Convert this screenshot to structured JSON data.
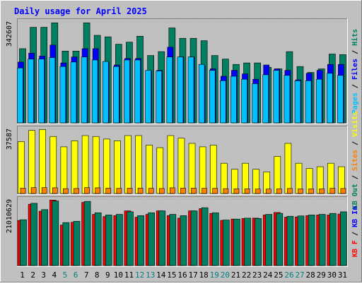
{
  "title": "Daily usage for April 2025",
  "colors": {
    "background": "#C0C0C0",
    "title": "#0000FF",
    "hits": "#008060",
    "files": "#0000FF",
    "pages": "#00C0FF",
    "visits": "#FFFF00",
    "sites": "#FF8000",
    "kb_in": "#008060",
    "kb_out": "#008060",
    "kb_f": "#FF0000",
    "weekend_label": "#008080",
    "weekday_label": "#000000"
  },
  "chart_data": [
    {
      "type": "bar",
      "name": "hits-files-pages",
      "ylabel_max": "342607",
      "ymax": 342607,
      "legend": [
        {
          "text": "Hits",
          "color": "#008060"
        },
        {
          "text": "Files",
          "color": "#0000FF"
        },
        {
          "text": "Pages",
          "color": "#00C0FF"
        }
      ],
      "categories": [
        "1",
        "2",
        "3",
        "4",
        "5",
        "6",
        "7",
        "8",
        "9",
        "10",
        "11",
        "12",
        "13",
        "14",
        "15",
        "16",
        "17",
        "18",
        "19",
        "20",
        "21",
        "22",
        "23",
        "24",
        "25",
        "26",
        "27",
        "28",
        "29",
        "30",
        "31"
      ],
      "weekend_days": [
        5,
        6,
        12,
        13,
        19,
        20,
        26,
        27
      ],
      "series": [
        {
          "name": "Hits",
          "values": [
            250000,
            322000,
            322000,
            337000,
            242000,
            242000,
            337000,
            295000,
            290000,
            265000,
            272000,
            292000,
            227000,
            240000,
            320000,
            285000,
            285000,
            277000,
            227000,
            215000,
            197000,
            202000,
            202000,
            187000,
            182000,
            240000,
            190000,
            170000,
            182000,
            232000,
            230000
          ]
        },
        {
          "name": "Files",
          "values": [
            205000,
            235000,
            225000,
            262000,
            202000,
            222000,
            250000,
            250000,
            205000,
            195000,
            217000,
            217000,
            175000,
            177000,
            255000,
            222000,
            222000,
            192000,
            182000,
            157000,
            177000,
            165000,
            147000,
            195000,
            182000,
            177000,
            145000,
            167000,
            177000,
            197000,
            197000
          ]
        },
        {
          "name": "Pages",
          "values": [
            185000,
            215000,
            215000,
            220000,
            190000,
            205000,
            222000,
            212000,
            207000,
            190000,
            212000,
            212000,
            177000,
            175000,
            222000,
            222000,
            222000,
            197000,
            177000,
            142000,
            157000,
            147000,
            132000,
            162000,
            177000,
            160000,
            142000,
            142000,
            147000,
            167000,
            160000
          ]
        }
      ]
    },
    {
      "type": "bar",
      "name": "visits-sites",
      "ylabel_max": "37587",
      "ymax": 37587,
      "legend": [
        {
          "text": "Visits",
          "color": "#FFFF00"
        },
        {
          "text": "Sites",
          "color": "#FF8000"
        },
        {
          "text": "KB Out",
          "color": "#008060"
        }
      ],
      "categories": [
        "1",
        "2",
        "3",
        "4",
        "5",
        "6",
        "7",
        "8",
        "9",
        "10",
        "11",
        "12",
        "13",
        "14",
        "15",
        "16",
        "17",
        "18",
        "19",
        "20",
        "21",
        "22",
        "23",
        "24",
        "25",
        "26",
        "27",
        "28",
        "29",
        "30",
        "31"
      ],
      "series": [
        {
          "name": "Visits",
          "values": [
            30000,
            36500,
            37000,
            33000,
            27000,
            30500,
            33500,
            33000,
            31500,
            30500,
            33500,
            33500,
            28000,
            26500,
            33500,
            32000,
            29000,
            27000,
            28000,
            17500,
            14000,
            17500,
            14000,
            12500,
            21500,
            29000,
            17500,
            14500,
            15500,
            17500,
            15500
          ]
        },
        {
          "name": "Sites",
          "values": [
            3100,
            3400,
            3400,
            3300,
            2800,
            2900,
            3400,
            3300,
            3100,
            3000,
            3100,
            3100,
            3000,
            2900,
            3300,
            3100,
            3100,
            3000,
            3000,
            2800,
            2700,
            2700,
            2600,
            2600,
            2700,
            2900,
            2700,
            2700,
            2700,
            3000,
            2900
          ]
        }
      ]
    },
    {
      "type": "bar",
      "name": "kb-in-kb-f",
      "ylabel_max": "21010629",
      "ymax": 21010629,
      "legend": [
        {
          "text": "KB In",
          "color": "#0000FF"
        },
        {
          "text": "KB F",
          "color": "#FF0000"
        }
      ],
      "categories": [
        "1",
        "2",
        "3",
        "4",
        "5",
        "6",
        "7",
        "8",
        "9",
        "10",
        "11",
        "12",
        "13",
        "14",
        "15",
        "16",
        "17",
        "18",
        "19",
        "20",
        "21",
        "22",
        "23",
        "24",
        "25",
        "26",
        "27",
        "28",
        "29",
        "30",
        "31"
      ],
      "series": [
        {
          "name": "KB In",
          "values": [
            14500000,
            19700000,
            17700000,
            20400000,
            13600000,
            14000000,
            20300000,
            16700000,
            16000000,
            16200000,
            17000000,
            15800000,
            16700000,
            17300000,
            16200000,
            15800000,
            17300000,
            18300000,
            16700000,
            14400000,
            14700000,
            15000000,
            14900000,
            16200000,
            16500000,
            15600000,
            15700000,
            16000000,
            16200000,
            16500000,
            17000000
          ]
        },
        {
          "name": "KB F",
          "values": [
            14300000,
            19400000,
            17200000,
            20700000,
            12800000,
            13700000,
            20000000,
            16200000,
            15500000,
            15800000,
            17300000,
            15300000,
            16200000,
            17300000,
            15800000,
            15000000,
            17300000,
            18000000,
            16500000,
            14300000,
            14700000,
            14900000,
            15000000,
            16000000,
            16800000,
            15300000,
            15400000,
            15800000,
            16000000,
            16000000,
            16300000
          ]
        }
      ]
    }
  ],
  "right_labels": [
    {
      "parts": [
        {
          "text": "Pages",
          "color": "#00C0FF"
        },
        {
          "text": " / ",
          "color": "#000000"
        },
        {
          "text": "Files",
          "color": "#0000FF"
        },
        {
          "text": " / ",
          "color": "#000000"
        },
        {
          "text": "Hits",
          "color": "#008060"
        }
      ]
    },
    {
      "parts": [
        {
          "text": "KB Out",
          "color": "#008060"
        },
        {
          "text": " / ",
          "color": "#000000"
        },
        {
          "text": "Sites",
          "color": "#FF8000"
        },
        {
          "text": " / ",
          "color": "#000000"
        },
        {
          "text": "Visits",
          "color": "#FFFF00"
        }
      ]
    },
    {
      "parts": [
        {
          "text": "KB F",
          "color": "#FF0000"
        },
        {
          "text": " / ",
          "color": "#000000"
        },
        {
          "text": "KB In",
          "color": "#0000FF"
        }
      ]
    }
  ]
}
